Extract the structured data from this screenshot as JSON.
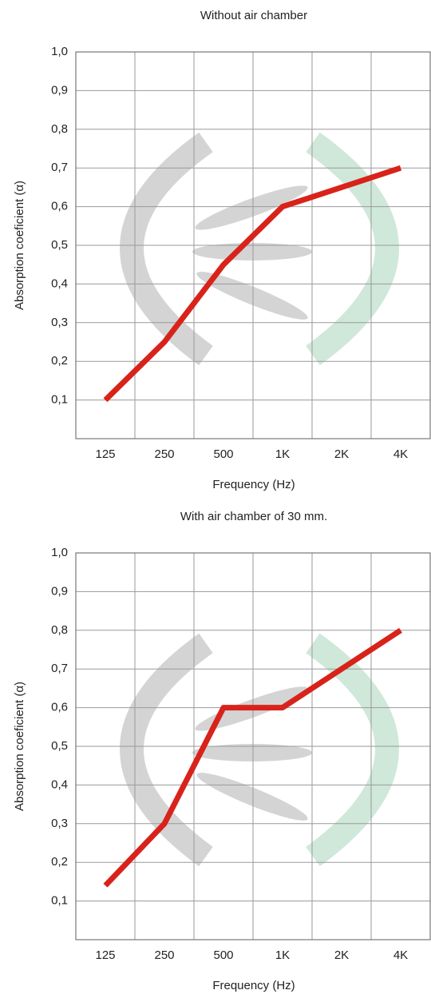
{
  "chart_data": [
    {
      "type": "line",
      "title": "Without air chamber",
      "x_label": "Frequency (Hz)",
      "y_label": "Absorption coeficient  (α)",
      "categories": [
        "125",
        "250",
        "500",
        "1K",
        "2K",
        "4K"
      ],
      "values": [
        0.1,
        0.25,
        0.45,
        0.6,
        0.65,
        0.7
      ],
      "color": "#d8231b",
      "ylim": [
        0,
        1
      ],
      "grid": true,
      "yticks": [
        {
          "value": 0.1,
          "label": "0,1"
        },
        {
          "value": 0.2,
          "label": "0,2"
        },
        {
          "value": 0.3,
          "label": "0,3"
        },
        {
          "value": 0.4,
          "label": "0,4"
        },
        {
          "value": 0.5,
          "label": "0,5"
        },
        {
          "value": 0.6,
          "label": "0,6"
        },
        {
          "value": 0.7,
          "label": "0,7"
        },
        {
          "value": 0.8,
          "label": "0,8"
        },
        {
          "value": 0.9,
          "label": "0,9"
        },
        {
          "value": 1.0,
          "label": "1,0"
        }
      ]
    },
    {
      "type": "line",
      "title": "With air chamber of 30 mm.",
      "x_label": "Frequency (Hz)",
      "y_label": "Absorption coeficient  (α)",
      "categories": [
        "125",
        "250",
        "500",
        "1K",
        "2K",
        "4K"
      ],
      "values": [
        0.14,
        0.3,
        0.6,
        0.6,
        0.7,
        0.8
      ],
      "color": "#d8231b",
      "ylim": [
        0,
        1
      ],
      "grid": true,
      "yticks": [
        {
          "value": 0.1,
          "label": "0,1"
        },
        {
          "value": 0.2,
          "label": "0,2"
        },
        {
          "value": 0.3,
          "label": "0,3"
        },
        {
          "value": 0.4,
          "label": "0,4"
        },
        {
          "value": 0.5,
          "label": "0,5"
        },
        {
          "value": 0.6,
          "label": "0,6"
        },
        {
          "value": 0.7,
          "label": "0,7"
        },
        {
          "value": 0.8,
          "label": "0,8"
        },
        {
          "value": 0.9,
          "label": "0,9"
        },
        {
          "value": 1.0,
          "label": "1,0"
        }
      ]
    }
  ]
}
